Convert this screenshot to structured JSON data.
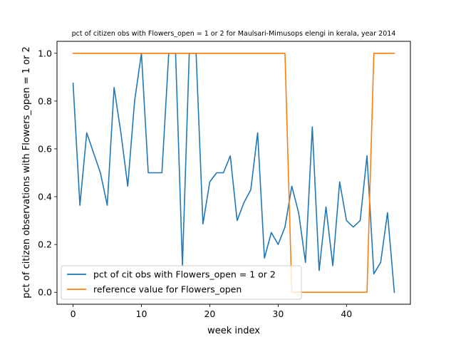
{
  "chart_data": {
    "type": "line",
    "title": "pct of citizen obs with Flowers_open = 1 or 2 for Maulsari-Mimusops elengi in kerala, year 2014",
    "xlabel": "week index",
    "ylabel": "pct of citizen observations with Flowers_open = 1 or 2",
    "xlim": [
      -2.35,
      49.35
    ],
    "ylim": [
      -0.05,
      1.05
    ],
    "xticks": [
      0,
      10,
      20,
      30,
      40
    ],
    "yticks": [
      0.0,
      0.2,
      0.4,
      0.6,
      0.8,
      1.0
    ],
    "xtick_labels": [
      "0",
      "10",
      "20",
      "30",
      "40"
    ],
    "ytick_labels": [
      "0.0",
      "0.2",
      "0.4",
      "0.6",
      "0.8",
      "1.0"
    ],
    "grid": false,
    "legend_position": "lower-left",
    "series": [
      {
        "name": "pct of cit obs with Flowers_open = 1 or 2",
        "color": "#1f77b4",
        "x": [
          0,
          1,
          2,
          3,
          4,
          5,
          6,
          7,
          8,
          9,
          10,
          11,
          12,
          13,
          14,
          15,
          16,
          17,
          18,
          19,
          20,
          21,
          22,
          23,
          24,
          25,
          26,
          27,
          28,
          29,
          30,
          31,
          32,
          33,
          34,
          35,
          36,
          37,
          38,
          39,
          40,
          41,
          42,
          43,
          44,
          45,
          46,
          47
        ],
        "y": [
          0.875,
          0.364,
          0.667,
          0.583,
          0.5,
          0.364,
          0.857,
          0.667,
          0.444,
          0.8,
          1.0,
          0.5,
          0.5,
          0.5,
          1.0,
          1.0,
          0.111,
          1.0,
          1.0,
          0.286,
          0.462,
          0.5,
          0.5,
          0.571,
          0.3,
          0.375,
          0.429,
          0.667,
          0.143,
          0.25,
          0.2,
          0.273,
          0.444,
          0.333,
          0.125,
          0.692,
          0.091,
          0.357,
          0.111,
          0.462,
          0.3,
          0.273,
          0.3,
          0.571,
          0.077,
          0.125,
          0.333,
          0.0
        ]
      },
      {
        "name": "reference value for Flowers_open",
        "color": "#ff7f0e",
        "x": [
          0,
          1,
          2,
          3,
          4,
          5,
          6,
          7,
          8,
          9,
          10,
          11,
          12,
          13,
          14,
          15,
          16,
          17,
          18,
          19,
          20,
          21,
          22,
          23,
          24,
          25,
          26,
          27,
          28,
          29,
          30,
          31,
          32,
          33,
          34,
          35,
          36,
          37,
          38,
          39,
          40,
          41,
          42,
          43,
          44,
          45,
          46,
          47
        ],
        "y": [
          1,
          1,
          1,
          1,
          1,
          1,
          1,
          1,
          1,
          1,
          1,
          1,
          1,
          1,
          1,
          1,
          1,
          1,
          1,
          1,
          1,
          1,
          1,
          1,
          1,
          1,
          1,
          1,
          1,
          1,
          1,
          1,
          0,
          0,
          0,
          0,
          0,
          0,
          0,
          0,
          0,
          0,
          0,
          0,
          1,
          1,
          1,
          1
        ]
      }
    ]
  }
}
